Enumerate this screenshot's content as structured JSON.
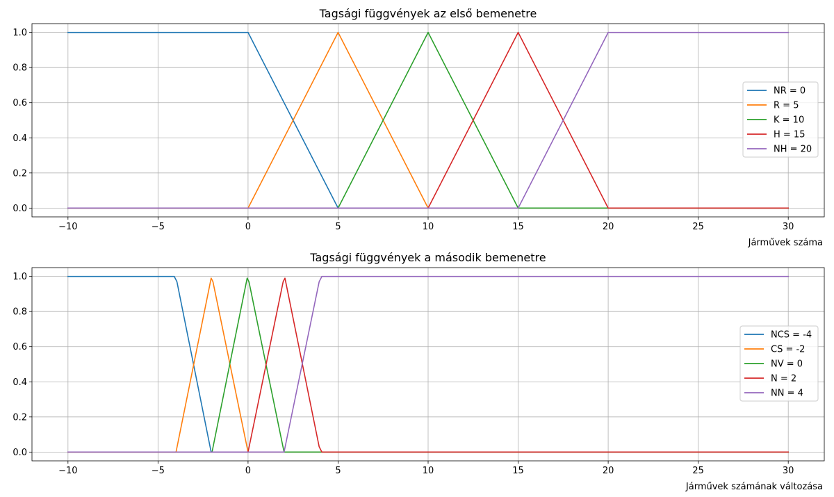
{
  "chart_data": [
    {
      "type": "line",
      "title": "Tagsági függvények az első bemenetre",
      "xlabel": "Járművek száma",
      "ylabel": "",
      "xlim": [
        -12,
        32
      ],
      "ylim": [
        -0.05,
        1.05
      ],
      "xticks": [
        -10,
        -5,
        0,
        5,
        10,
        15,
        20,
        25,
        30
      ],
      "xtick_labels": [
        "−10",
        "−5",
        "0",
        "5",
        "10",
        "15",
        "20",
        "25",
        "30"
      ],
      "yticks": [
        0.0,
        0.2,
        0.4,
        0.6,
        0.8,
        1.0
      ],
      "ytick_labels": [
        "0.0",
        "0.2",
        "0.4",
        "0.6",
        "0.8",
        "1.0"
      ],
      "grid": true,
      "legend_position": "center-right",
      "series": [
        {
          "name": "NR = 0",
          "color": "#1f77b4",
          "x": [
            -10,
            0,
            5,
            30
          ],
          "y": [
            1,
            1,
            0,
            0
          ]
        },
        {
          "name": "R = 5",
          "color": "#ff7f0e",
          "x": [
            -10,
            0,
            5,
            10,
            30
          ],
          "y": [
            0,
            0,
            1,
            0,
            0
          ]
        },
        {
          "name": "K = 10",
          "color": "#2ca02c",
          "x": [
            -10,
            5,
            10,
            15,
            30
          ],
          "y": [
            0,
            0,
            1,
            0,
            0
          ]
        },
        {
          "name": "H = 15",
          "color": "#d62728",
          "x": [
            -10,
            10,
            15,
            20,
            30
          ],
          "y": [
            0,
            0,
            1,
            0,
            0
          ]
        },
        {
          "name": "NH = 20",
          "color": "#9467bd",
          "x": [
            -10,
            15,
            20,
            30
          ],
          "y": [
            0,
            0,
            1,
            1
          ]
        }
      ]
    },
    {
      "type": "line",
      "title": "Tagsági függvények a második bemenetre",
      "xlabel": "Járművek számának változása",
      "ylabel": "",
      "xlim": [
        -12,
        32
      ],
      "ylim": [
        -0.05,
        1.05
      ],
      "xticks": [
        -10,
        -5,
        0,
        5,
        10,
        15,
        20,
        25,
        30
      ],
      "xtick_labels": [
        "−10",
        "−5",
        "0",
        "5",
        "10",
        "15",
        "20",
        "25",
        "30"
      ],
      "yticks": [
        0.0,
        0.2,
        0.4,
        0.6,
        0.8,
        1.0
      ],
      "ytick_labels": [
        "0.0",
        "0.2",
        "0.4",
        "0.6",
        "0.8",
        "1.0"
      ],
      "grid": true,
      "legend_position": "center-right",
      "series": [
        {
          "name": "NCS = -4",
          "color": "#1f77b4",
          "x": [
            -10,
            -4.1,
            -3.95,
            -2.05,
            30
          ],
          "y": [
            1,
            1,
            0.97,
            0,
            0
          ]
        },
        {
          "name": "CS = -2",
          "color": "#ff7f0e",
          "x": [
            -10,
            -4,
            -2.05,
            -1.95,
            0,
            30
          ],
          "y": [
            0,
            0,
            0.99,
            0.97,
            0,
            0
          ]
        },
        {
          "name": "NV = 0",
          "color": "#2ca02c",
          "x": [
            -10,
            -2,
            -0.05,
            0.05,
            2,
            30
          ],
          "y": [
            0,
            0,
            0.99,
            0.97,
            0,
            0
          ]
        },
        {
          "name": "N = 2",
          "color": "#d62728",
          "x": [
            -10,
            0,
            1.95,
            2.05,
            3.95,
            4.1,
            30
          ],
          "y": [
            0,
            0,
            0.97,
            0.99,
            0.03,
            0,
            0
          ]
        },
        {
          "name": "NN = 4",
          "color": "#9467bd",
          "x": [
            -10,
            2,
            3.95,
            4.1,
            30
          ],
          "y": [
            0,
            0,
            0.97,
            1,
            1
          ]
        }
      ]
    }
  ]
}
